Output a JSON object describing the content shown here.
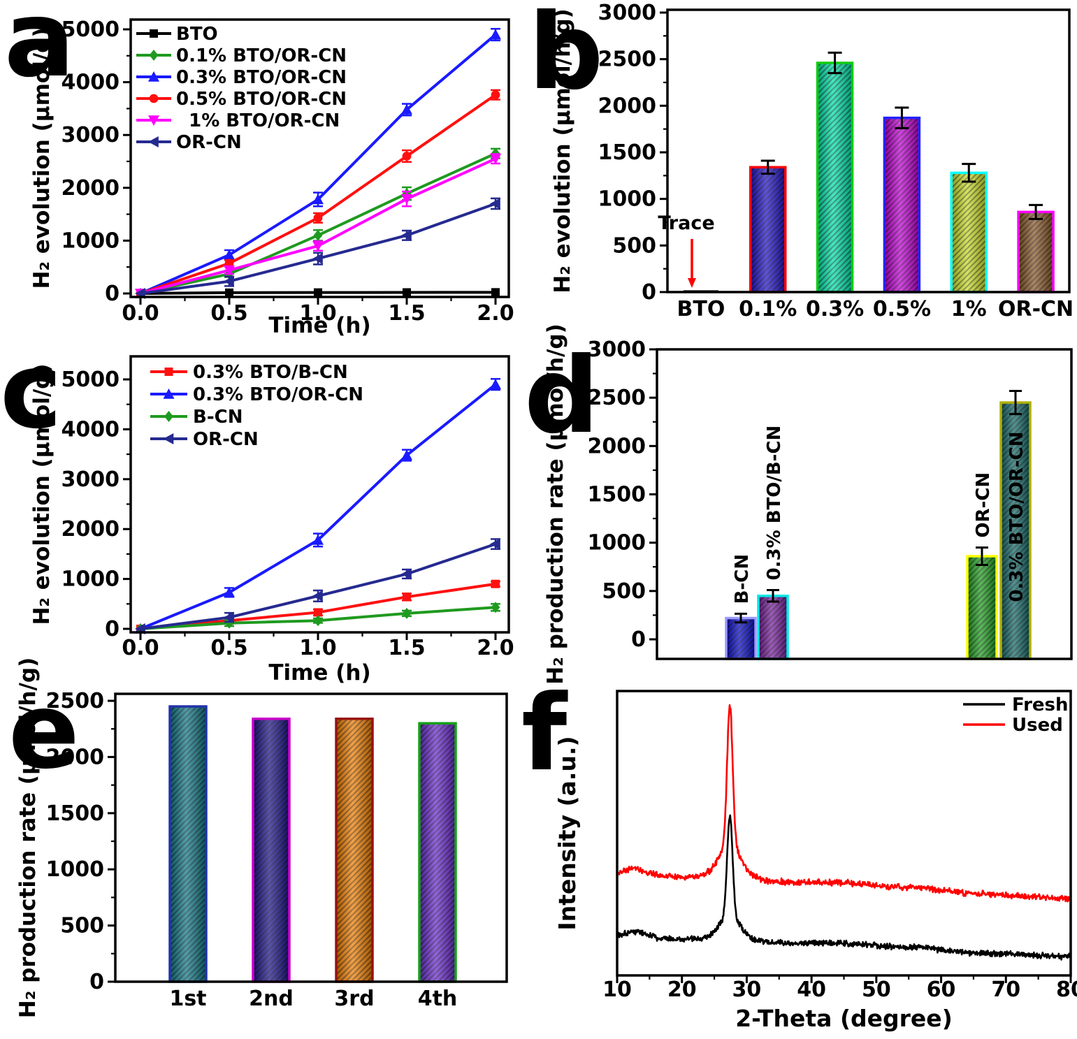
{
  "figure": {
    "background": "#ffffff",
    "frame_color": "#000000"
  },
  "panels": {
    "a": {
      "letter": "a"
    },
    "b": {
      "letter": "b"
    },
    "c": {
      "letter": "c"
    },
    "d": {
      "letter": "d"
    },
    "e": {
      "letter": "e"
    },
    "f": {
      "letter": "f"
    }
  },
  "chart_data": [
    {
      "panel": "a",
      "type": "line",
      "xlabel": "Time (h)",
      "ylabel": "H₂ evolution (μmol/g)",
      "xlim": [
        0,
        2
      ],
      "ylim": [
        0,
        5000
      ],
      "xtick_labels": [
        "0.0",
        "0.5",
        "1.0",
        "1.5",
        "2.0"
      ],
      "xtick_vals": [
        0,
        0.5,
        1.0,
        1.5,
        2.0
      ],
      "xminor": [
        0.25,
        0.75,
        1.25,
        1.75
      ],
      "yticks": [
        0,
        1000,
        2000,
        3000,
        4000,
        5000
      ],
      "yminor": [
        500,
        1500,
        2500,
        3500,
        4500
      ],
      "x": [
        0,
        0.5,
        1.0,
        1.5,
        2.0
      ],
      "legend_position": "top-left",
      "series": [
        {
          "name": "BTO",
          "color": "#000000",
          "marker": "square",
          "values": [
            0,
            15,
            18,
            20,
            22
          ],
          "errors": [
            0,
            0,
            0,
            0,
            0
          ]
        },
        {
          "name": "0.1% BTO/OR-CN",
          "color": "#1f9a1f",
          "marker": "diamond",
          "values": [
            0,
            370,
            1100,
            1890,
            2650
          ],
          "errors": [
            0,
            60,
            100,
            120,
            90
          ]
        },
        {
          "name": "0.3% BTO/OR-CN",
          "color": "#1a1aff",
          "marker": "triangle-up",
          "values": [
            0,
            730,
            1780,
            3480,
            4900
          ],
          "errors": [
            0,
            90,
            130,
            110,
            110
          ]
        },
        {
          "name": "0.5% BTO/OR-CN",
          "color": "#ff1010",
          "marker": "circle",
          "values": [
            0,
            570,
            1430,
            2600,
            3760
          ],
          "errors": [
            0,
            60,
            90,
            110,
            90
          ]
        },
        {
          "name": "  1% BTO/OR-CN",
          "color": "#ff00ff",
          "marker": "triangle-down",
          "values": [
            0,
            440,
            900,
            1790,
            2550
          ],
          "errors": [
            0,
            70,
            90,
            140,
            90
          ]
        },
        {
          "name": "OR-CN",
          "color": "#252a90",
          "marker": "triangle-left",
          "values": [
            0,
            230,
            660,
            1100,
            1700
          ],
          "errors": [
            0,
            90,
            110,
            90,
            100
          ]
        }
      ]
    },
    {
      "panel": "b",
      "type": "bar",
      "ylabel": "H₂ evolution (μmol/h/g)",
      "ylim": [
        0,
        3000
      ],
      "yticks": [
        0,
        500,
        1000,
        1500,
        2000,
        2500,
        3000
      ],
      "yminor": [
        250,
        750,
        1250,
        1750,
        2250,
        2750
      ],
      "categories": [
        "BTO",
        "0.1%",
        "0.3%",
        "0.5%",
        "1%",
        "OR-CN"
      ],
      "values": [
        8,
        1340,
        2460,
        1870,
        1280,
        860
      ],
      "errors": [
        0,
        70,
        110,
        110,
        95,
        75
      ],
      "fills": [
        "#000000",
        "#2212cc",
        "#00e0a8",
        "#c400d8",
        "#c8dc28",
        "#8a5a2a"
      ],
      "edges": [
        "#000000",
        "#ff0000",
        "#10cc10",
        "#2222ff",
        "#00ffff",
        "#ff00ff"
      ],
      "annotation": {
        "text": "Trace",
        "color": "#000000",
        "arrow_color": "#ff0000",
        "target": "BTO"
      }
    },
    {
      "panel": "c",
      "type": "line",
      "xlabel": "Time (h)",
      "ylabel": "H₂ evolution (μmol/g)",
      "xlim": [
        0,
        2
      ],
      "ylim": [
        0,
        5000
      ],
      "xtick_labels": [
        "0.0",
        "0.5",
        "1.0",
        "1.5",
        "2.0"
      ],
      "xtick_vals": [
        0,
        0.5,
        1.0,
        1.5,
        2.0
      ],
      "xminor": [
        0.25,
        0.75,
        1.25,
        1.75
      ],
      "yticks": [
        0,
        1000,
        2000,
        3000,
        4000,
        5000
      ],
      "yminor": [
        500,
        1500,
        2500,
        3500,
        4500
      ],
      "x": [
        0,
        0.5,
        1.0,
        1.5,
        2.0
      ],
      "legend_position": "top-left",
      "series": [
        {
          "name": "0.3% BTO/B-CN",
          "color": "#ff1010",
          "marker": "square",
          "values": [
            0,
            165,
            330,
            640,
            900
          ],
          "errors": [
            0,
            45,
            60,
            70,
            50
          ]
        },
        {
          "name": "0.3% BTO/OR-CN",
          "color": "#1a1aff",
          "marker": "triangle-up",
          "values": [
            0,
            730,
            1780,
            3480,
            4900
          ],
          "errors": [
            0,
            90,
            130,
            110,
            110
          ]
        },
        {
          "name": "B-CN",
          "color": "#1f9a1f",
          "marker": "diamond",
          "values": [
            0,
            115,
            165,
            310,
            430
          ],
          "errors": [
            0,
            60,
            45,
            55,
            70
          ]
        },
        {
          "name": "OR-CN",
          "color": "#252a90",
          "marker": "triangle-left",
          "values": [
            0,
            230,
            660,
            1100,
            1700
          ],
          "errors": [
            0,
            90,
            110,
            90,
            100
          ]
        }
      ]
    },
    {
      "panel": "d",
      "type": "bar-pairs",
      "ylabel": "H₂ production rate (μmol/h/g)",
      "ylim": [
        0,
        3000
      ],
      "yticks": [
        0,
        500,
        1000,
        1500,
        2000,
        2500,
        3000
      ],
      "yminor": [
        250,
        750,
        1250,
        1750,
        2250,
        2750
      ],
      "bars": [
        {
          "label": "B-CN",
          "value": 220,
          "error": 45,
          "fill": "#0808cc",
          "edge": "#9999ff",
          "label_style": "above",
          "label_color": "#000000"
        },
        {
          "label": "0.3% BTO/B-CN",
          "value": 450,
          "error": 60,
          "fill": "#7a1fa0",
          "edge": "#00e8e8",
          "label_style": "above",
          "label_color": "#000000"
        },
        {
          "label": "OR-CN",
          "value": 860,
          "error": 90,
          "fill": "#1fa01f",
          "edge": "#ffff00",
          "label_style": "above",
          "label_color": "#000000"
        },
        {
          "label": "0.3% BTO/OR-CN",
          "value": 2450,
          "error": 120,
          "fill": "#156a6a",
          "edge": "#b0b000",
          "label_style": "inside",
          "label_color": "#ffffff"
        }
      ]
    },
    {
      "panel": "e",
      "type": "bar",
      "ylabel": "H₂ production rate (μmol/h/g)",
      "ylim": [
        0,
        2500
      ],
      "yticks": [
        0,
        500,
        1000,
        1500,
        2000,
        2500
      ],
      "yminor": [
        250,
        750,
        1250,
        1750,
        2250
      ],
      "categories": [
        "1st",
        "2nd",
        "3rd",
        "4th"
      ],
      "values": [
        2450,
        2340,
        2340,
        2300
      ],
      "errors": [
        0,
        0,
        0,
        0
      ],
      "fills": [
        "#107888",
        "#1c128c",
        "#ef7d00",
        "#6a2ad0"
      ],
      "edges": [
        "#2233aa",
        "#cc00cc",
        "#991111",
        "#15a015"
      ]
    },
    {
      "panel": "f",
      "type": "xrd",
      "xlabel": "2-Theta (degree)",
      "ylabel": "Intensity (a.u.)",
      "xlim": [
        10,
        80
      ],
      "xtick_vals": [
        10,
        20,
        30,
        40,
        50,
        60,
        70,
        80
      ],
      "xminor": [
        15,
        25,
        35,
        45,
        55,
        65,
        75
      ],
      "peak_center": 27.4,
      "humps": [
        {
          "c": 12.8,
          "a": 0.022,
          "s": 1.8
        },
        {
          "c": 45,
          "a": 0.013,
          "s": 5
        },
        {
          "c": 56.5,
          "a": 0.009,
          "s": 3.5
        }
      ],
      "legend": [
        "Fresh",
        "Used"
      ],
      "series": [
        {
          "name": "Fresh",
          "color": "#000000",
          "baseline_start": 0.135,
          "baseline_end": 0.065,
          "peak_height": 0.56,
          "seed": 101
        },
        {
          "name": "Used",
          "color": "#ff0000",
          "baseline_start": 0.355,
          "baseline_end": 0.27,
          "peak_height": 0.95,
          "seed": 202
        }
      ]
    }
  ]
}
